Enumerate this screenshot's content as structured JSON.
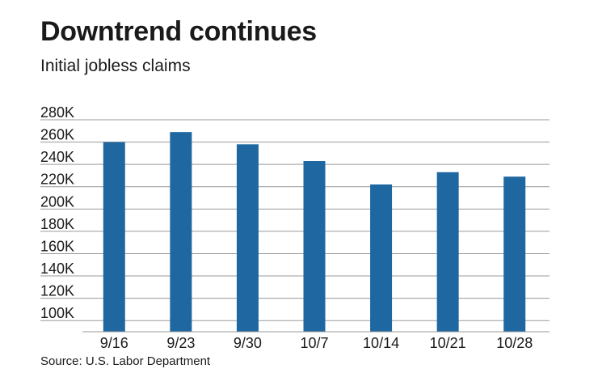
{
  "chart_data": {
    "type": "bar",
    "title": "Downtrend continues",
    "subtitle": "Initial jobless claims",
    "source": "Source: U.S. Labor Department",
    "categories": [
      "9/16",
      "9/23",
      "9/30",
      "10/7",
      "10/14",
      "10/21",
      "10/28"
    ],
    "values": [
      260000,
      269000,
      258000,
      243000,
      222000,
      233000,
      229000
    ],
    "ylim": [
      90000,
      280000
    ],
    "yticks": [
      100000,
      120000,
      140000,
      160000,
      180000,
      200000,
      220000,
      240000,
      260000,
      280000
    ],
    "ytick_labels": [
      "100K",
      "120K",
      "140K",
      "160K",
      "180K",
      "200K",
      "220K",
      "240K",
      "260K",
      "280K"
    ],
    "grid": true,
    "colors": {
      "bar": "#1f67a0",
      "grid": "#9a9a9a"
    }
  }
}
